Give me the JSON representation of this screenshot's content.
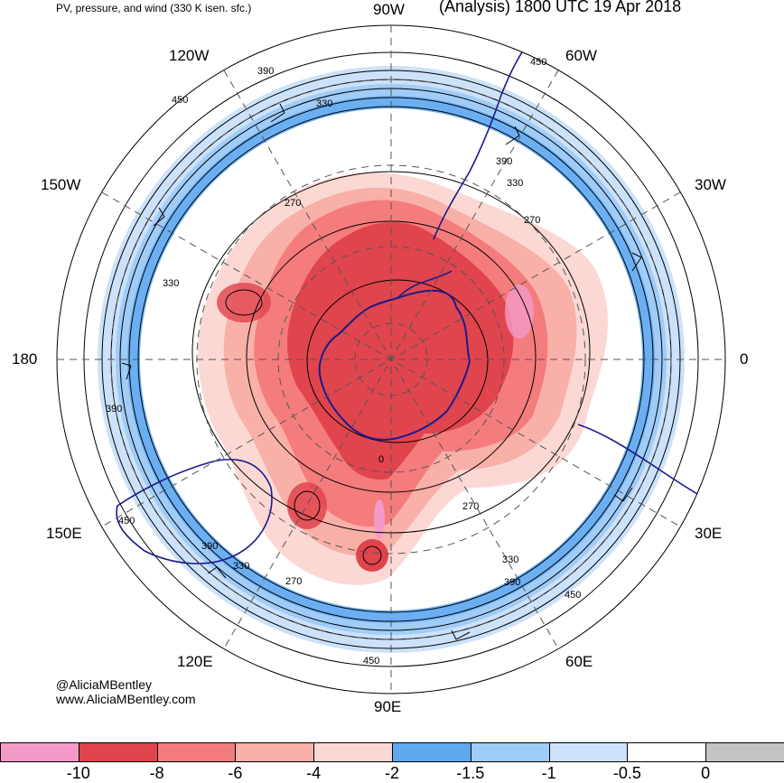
{
  "header": {
    "left_title": "PV, pressure, and wind (330 K isen. sfc.)",
    "right_title": "(Analysis) 1800 UTC 19 Apr 2018"
  },
  "longitude_labels": {
    "w90": "90W",
    "w60": "60W",
    "w30": "30W",
    "zero": "0",
    "e30": "30E",
    "e60": "60E",
    "e90": "90E",
    "e120": "120E",
    "e150": "150E",
    "d180": "180",
    "w150": "150W",
    "w120": "120W"
  },
  "contour_labels": [
    {
      "id": "c1",
      "text": "390"
    },
    {
      "id": "c2",
      "text": "450"
    },
    {
      "id": "c3",
      "text": "330"
    },
    {
      "id": "c4",
      "text": "450"
    },
    {
      "id": "c5",
      "text": "390"
    },
    {
      "id": "c6",
      "text": "330"
    },
    {
      "id": "c7",
      "text": "270"
    },
    {
      "id": "c8",
      "text": "270"
    },
    {
      "id": "c9",
      "text": "330"
    },
    {
      "id": "c10",
      "text": "390"
    },
    {
      "id": "c11",
      "text": "0"
    },
    {
      "id": "c12",
      "text": "270"
    },
    {
      "id": "c13",
      "text": "450"
    },
    {
      "id": "c14",
      "text": "390"
    },
    {
      "id": "c15",
      "text": "330"
    },
    {
      "id": "c16",
      "text": "270"
    },
    {
      "id": "c17",
      "text": "330"
    },
    {
      "id": "c18",
      "text": "390"
    },
    {
      "id": "c19",
      "text": "450"
    },
    {
      "id": "c20",
      "text": "450"
    }
  ],
  "credits": {
    "handle": "@AliciaMBentley",
    "website": "www.AliciaMBentley.com"
  },
  "colorbar": {
    "bins": [
      "#f49ac8",
      "#e0444c",
      "#f47c7c",
      "#f8b0a8",
      "#fbd8d4",
      "#5ea8f0",
      "#a0ccf8",
      "#cce2fa",
      "#ffffff",
      "#c4c4c4"
    ],
    "ticks": [
      "-10",
      "-8",
      "-6",
      "-4",
      "-2",
      "-1.5",
      "-1",
      "-0.5",
      "0"
    ]
  },
  "colors": {
    "neg_strong": "#e0444c",
    "neg_mid": "#f47c7c",
    "neg_light": "#f8b0a8",
    "neg_faint": "#fbd8d4",
    "pos_blue": "#5ea8f0",
    "pos_light_blue": "#a0ccf8",
    "coast": "#1a1a8c"
  }
}
